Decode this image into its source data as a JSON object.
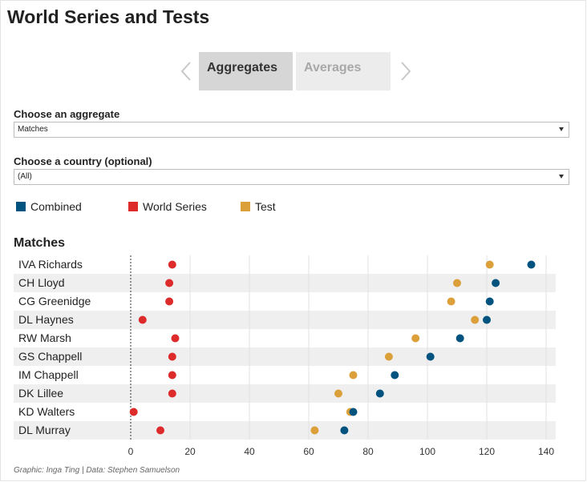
{
  "header": {
    "title": "World Series and Tests"
  },
  "tabs": {
    "items": [
      {
        "label": "Aggregates",
        "active": true
      },
      {
        "label": "Averages",
        "active": false
      }
    ]
  },
  "controls": {
    "aggregate_label": "Choose an aggregate",
    "aggregate_value": "Matches",
    "country_label": "Choose a country (optional)",
    "country_value": "(All)"
  },
  "legend": [
    {
      "label": "Combined",
      "color": "#00537e"
    },
    {
      "label": "World Series",
      "color": "#dd2a2a"
    },
    {
      "label": "Test",
      "color": "#dca03b"
    }
  ],
  "footer": "Graphic: Inga Ting | Data: Stephen Samuelson",
  "chart_data": {
    "type": "scatter",
    "title": "Matches",
    "categories": [
      "IVA Richards",
      "CH Lloyd",
      "CG Greenidge",
      "DL Haynes",
      "RW Marsh",
      "GS Chappell",
      "IM Chappell",
      "DK Lillee",
      "KD Walters",
      "DL Murray"
    ],
    "series": [
      {
        "name": "Combined",
        "color": "#00537e",
        "values": [
          135,
          123,
          121,
          120,
          111,
          101,
          89,
          84,
          75,
          72
        ]
      },
      {
        "name": "World Series",
        "color": "#dd2a2a",
        "values": [
          14,
          13,
          13,
          4,
          15,
          14,
          14,
          14,
          1,
          10
        ]
      },
      {
        "name": "Test",
        "color": "#dca03b",
        "values": [
          121,
          110,
          108,
          116,
          96,
          87,
          75,
          70,
          74,
          62
        ]
      }
    ],
    "xticks": [
      0,
      20,
      40,
      60,
      80,
      100,
      120,
      140
    ],
    "xlim": [
      0,
      140
    ],
    "grid": true
  }
}
